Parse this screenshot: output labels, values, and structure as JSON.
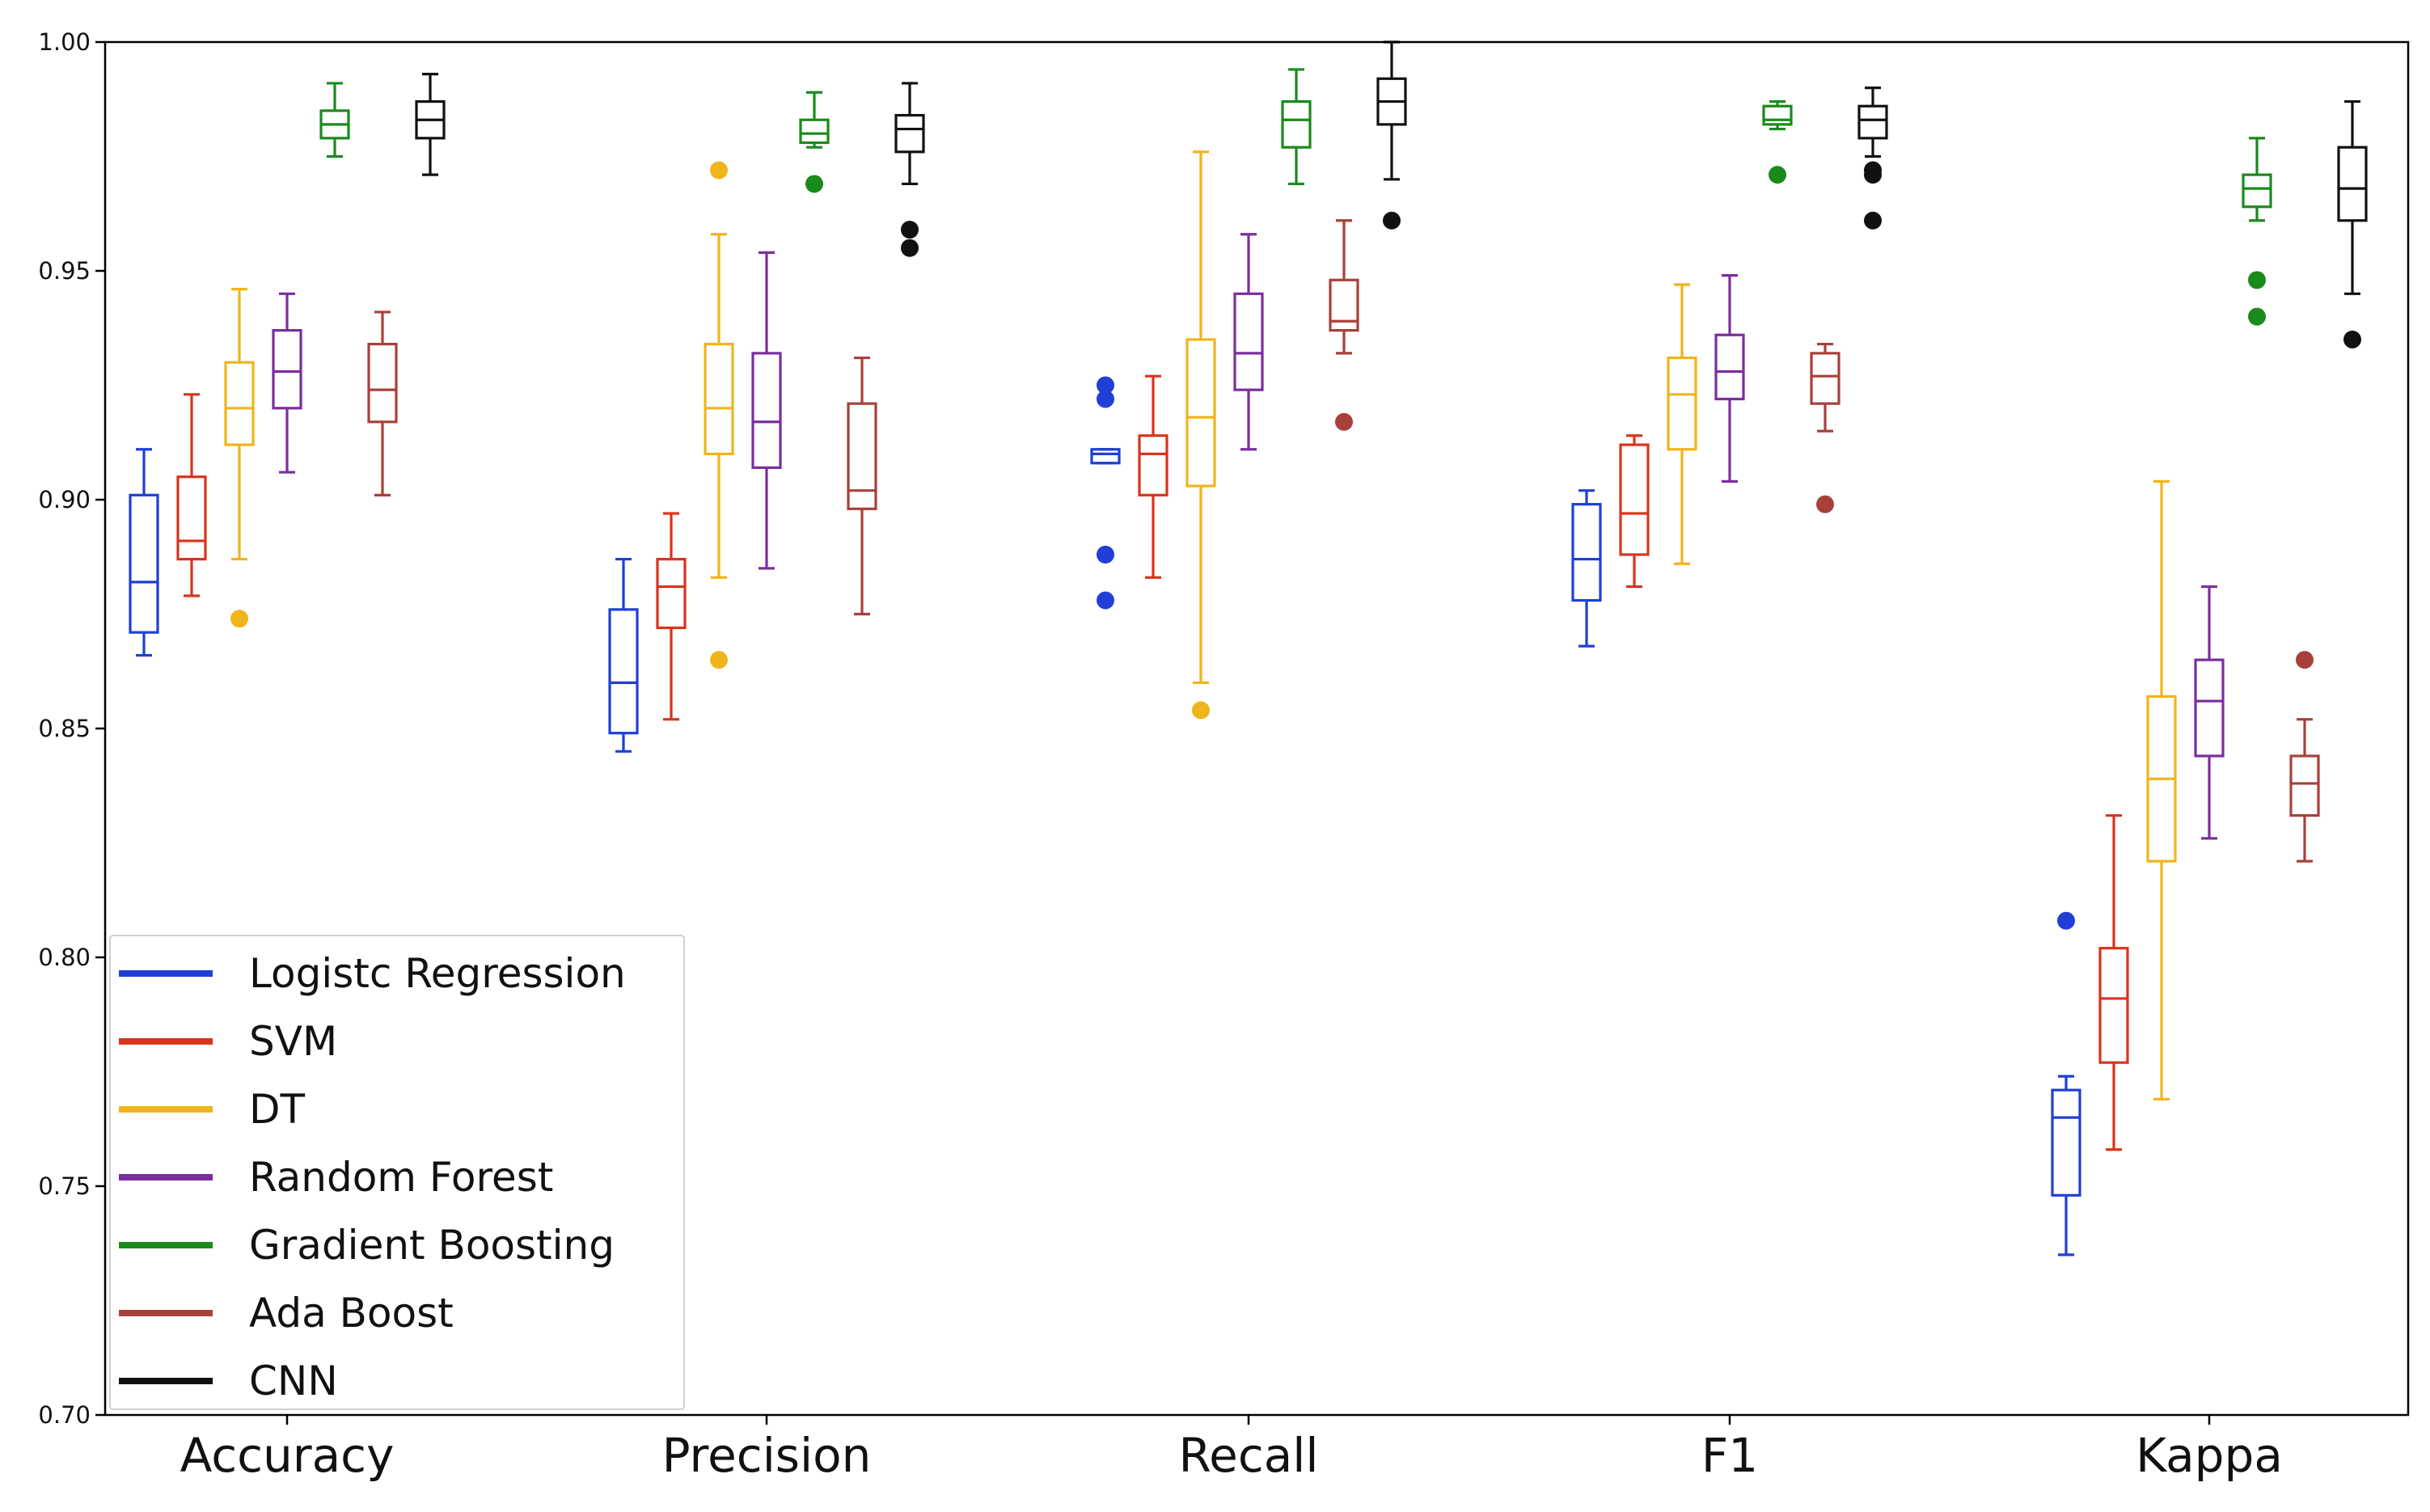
{
  "chart_data": {
    "type": "boxplot",
    "title": "",
    "xlabel": "",
    "ylabel": "",
    "ylim": [
      0.7,
      1.0
    ],
    "yticks": [
      "0.70",
      "0.75",
      "0.80",
      "0.85",
      "0.90",
      "0.95",
      "1.00"
    ],
    "ytick_values": [
      0.7,
      0.75,
      0.8,
      0.85,
      0.9,
      0.95,
      1.0
    ],
    "grid": false,
    "legend_position": "bottom-left",
    "categories": [
      "Accuracy",
      "Precision",
      "Recall",
      "F1",
      "Kappa"
    ],
    "series": [
      {
        "name": "Logistc Regression",
        "color": "#1f3fd6",
        "boxes": [
          {
            "min": 0.866,
            "q1": 0.871,
            "median": 0.882,
            "q3": 0.901,
            "max": 0.911,
            "outliers": []
          },
          {
            "min": 0.845,
            "q1": 0.849,
            "median": 0.86,
            "q3": 0.876,
            "max": 0.887,
            "outliers": []
          },
          {
            "min": 0.908,
            "q1": 0.908,
            "median": 0.91,
            "q3": 0.911,
            "max": 0.911,
            "outliers": [
              0.925,
              0.922,
              0.888,
              0.878
            ]
          },
          {
            "min": 0.868,
            "q1": 0.878,
            "median": 0.887,
            "q3": 0.899,
            "max": 0.902,
            "outliers": []
          },
          {
            "min": 0.735,
            "q1": 0.748,
            "median": 0.765,
            "q3": 0.771,
            "max": 0.774,
            "outliers": [
              0.808
            ]
          }
        ]
      },
      {
        "name": "SVM",
        "color": "#d9341c",
        "boxes": [
          {
            "min": 0.879,
            "q1": 0.887,
            "median": 0.891,
            "q3": 0.905,
            "max": 0.923,
            "outliers": []
          },
          {
            "min": 0.852,
            "q1": 0.872,
            "median": 0.881,
            "q3": 0.887,
            "max": 0.897,
            "outliers": []
          },
          {
            "min": 0.883,
            "q1": 0.901,
            "median": 0.91,
            "q3": 0.914,
            "max": 0.927,
            "outliers": []
          },
          {
            "min": 0.881,
            "q1": 0.888,
            "median": 0.897,
            "q3": 0.912,
            "max": 0.914,
            "outliers": []
          },
          {
            "min": 0.758,
            "q1": 0.777,
            "median": 0.791,
            "q3": 0.802,
            "max": 0.831,
            "outliers": []
          }
        ]
      },
      {
        "name": "DT",
        "color": "#f0b51a",
        "boxes": [
          {
            "min": 0.887,
            "q1": 0.912,
            "median": 0.92,
            "q3": 0.93,
            "max": 0.946,
            "outliers": [
              0.874
            ]
          },
          {
            "min": 0.883,
            "q1": 0.91,
            "median": 0.92,
            "q3": 0.934,
            "max": 0.958,
            "outliers": [
              0.972,
              0.865
            ]
          },
          {
            "min": 0.86,
            "q1": 0.903,
            "median": 0.918,
            "q3": 0.935,
            "max": 0.976,
            "outliers": [
              0.854
            ]
          },
          {
            "min": 0.886,
            "q1": 0.911,
            "median": 0.923,
            "q3": 0.931,
            "max": 0.947,
            "outliers": []
          },
          {
            "min": 0.769,
            "q1": 0.821,
            "median": 0.839,
            "q3": 0.857,
            "max": 0.904,
            "outliers": []
          }
        ]
      },
      {
        "name": "Random Forest",
        "color": "#7b2e9e",
        "boxes": [
          {
            "min": 0.906,
            "q1": 0.92,
            "median": 0.928,
            "q3": 0.937,
            "max": 0.945,
            "outliers": []
          },
          {
            "min": 0.885,
            "q1": 0.907,
            "median": 0.917,
            "q3": 0.932,
            "max": 0.954,
            "outliers": []
          },
          {
            "min": 0.911,
            "q1": 0.924,
            "median": 0.932,
            "q3": 0.945,
            "max": 0.958,
            "outliers": []
          },
          {
            "min": 0.904,
            "q1": 0.922,
            "median": 0.928,
            "q3": 0.936,
            "max": 0.949,
            "outliers": []
          },
          {
            "min": 0.826,
            "q1": 0.844,
            "median": 0.856,
            "q3": 0.865,
            "max": 0.881,
            "outliers": []
          }
        ]
      },
      {
        "name": "Gradient Boosting",
        "color": "#1a8a1a",
        "boxes": [
          {
            "min": 0.975,
            "q1": 0.979,
            "median": 0.982,
            "q3": 0.985,
            "max": 0.991,
            "outliers": []
          },
          {
            "min": 0.977,
            "q1": 0.978,
            "median": 0.98,
            "q3": 0.983,
            "max": 0.989,
            "outliers": [
              0.969
            ]
          },
          {
            "min": 0.969,
            "q1": 0.977,
            "median": 0.983,
            "q3": 0.987,
            "max": 0.994,
            "outliers": []
          },
          {
            "min": 0.981,
            "q1": 0.982,
            "median": 0.983,
            "q3": 0.986,
            "max": 0.987,
            "outliers": [
              0.971
            ]
          },
          {
            "min": 0.961,
            "q1": 0.964,
            "median": 0.968,
            "q3": 0.971,
            "max": 0.979,
            "outliers": [
              0.948,
              0.94
            ]
          }
        ]
      },
      {
        "name": "Ada Boost",
        "color": "#a8403a",
        "boxes": [
          {
            "min": 0.901,
            "q1": 0.917,
            "median": 0.924,
            "q3": 0.934,
            "max": 0.941,
            "outliers": []
          },
          {
            "min": 0.875,
            "q1": 0.898,
            "median": 0.902,
            "q3": 0.921,
            "max": 0.931,
            "outliers": []
          },
          {
            "min": 0.932,
            "q1": 0.937,
            "median": 0.939,
            "q3": 0.948,
            "max": 0.961,
            "outliers": [
              0.917
            ]
          },
          {
            "min": 0.915,
            "q1": 0.921,
            "median": 0.927,
            "q3": 0.932,
            "max": 0.934,
            "outliers": [
              0.899
            ]
          },
          {
            "min": 0.821,
            "q1": 0.831,
            "median": 0.838,
            "q3": 0.844,
            "max": 0.852,
            "outliers": [
              0.865
            ]
          }
        ]
      },
      {
        "name": "CNN",
        "color": "#111111",
        "boxes": [
          {
            "min": 0.971,
            "q1": 0.979,
            "median": 0.983,
            "q3": 0.987,
            "max": 0.993,
            "outliers": []
          },
          {
            "min": 0.969,
            "q1": 0.976,
            "median": 0.981,
            "q3": 0.984,
            "max": 0.991,
            "outliers": [
              0.959,
              0.955
            ]
          },
          {
            "min": 0.97,
            "q1": 0.982,
            "median": 0.987,
            "q3": 0.992,
            "max": 1.0,
            "outliers": [
              0.961
            ]
          },
          {
            "min": 0.975,
            "q1": 0.979,
            "median": 0.983,
            "q3": 0.986,
            "max": 0.99,
            "outliers": [
              0.972,
              0.971,
              0.961
            ]
          },
          {
            "min": 0.945,
            "q1": 0.961,
            "median": 0.968,
            "q3": 0.977,
            "max": 0.987,
            "outliers": [
              0.935
            ]
          }
        ]
      }
    ]
  }
}
